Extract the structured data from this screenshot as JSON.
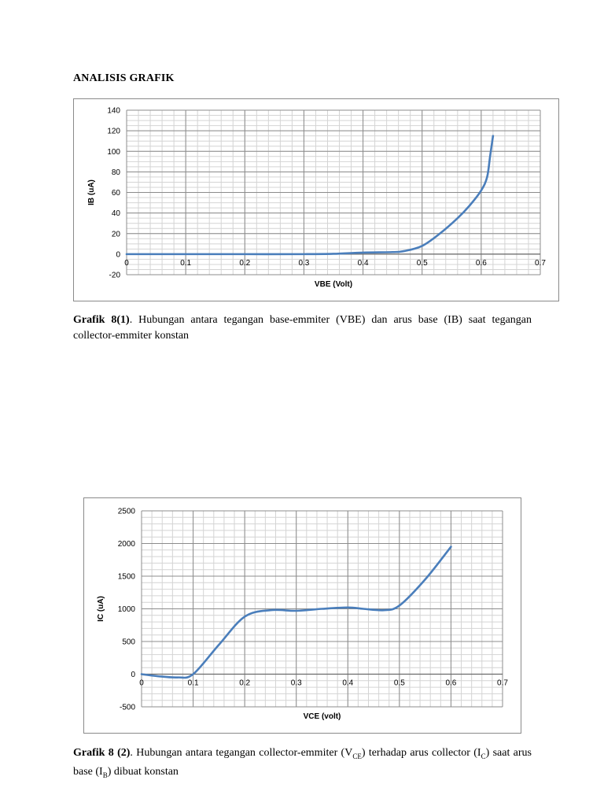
{
  "page": {
    "heading": "ANALISIS GRAFIK"
  },
  "captions": {
    "c1": {
      "bold": "Grafik 8(1)",
      "text": ". Hubungan antara tegangan base-emmiter (VBE) dan arus base (IB) saat tegangan collector-emmiter konstan"
    },
    "c2": {
      "bold": "Grafik 8 (2)",
      "p1": ". Hubungan antara tegangan collector-emmiter (V",
      "s1": "CE",
      "p2": ") terhadap arus collector (I",
      "s2": "C",
      "p3": ") saat arus base (I",
      "s3": "B",
      "p4": ") dibuat konstan"
    }
  },
  "chart_data": [
    {
      "type": "line",
      "title": "",
      "xlabel": "VBE (Volt)",
      "ylabel": "IB (uA)",
      "xlim": [
        0,
        0.7
      ],
      "ylim": [
        -20,
        140
      ],
      "x_ticks": [
        0,
        0.1,
        0.2,
        0.3,
        0.4,
        0.5,
        0.6,
        0.7
      ],
      "x_tick_labels": [
        "0",
        "0.1",
        "0.2",
        "0.3",
        "0.4",
        "0.5",
        "0.6",
        "0.7"
      ],
      "y_ticks": [
        -20,
        0,
        20,
        40,
        60,
        80,
        100,
        120,
        140
      ],
      "y_tick_labels": [
        "-20",
        "0",
        "20",
        "40",
        "60",
        "80",
        "100",
        "120",
        "140"
      ],
      "grid": true,
      "legend": "none",
      "line_color": "#4A7EBB",
      "series": [
        {
          "x": [
            0,
            0.1,
            0.2,
            0.3,
            0.35,
            0.4,
            0.45,
            0.47,
            0.5,
            0.53,
            0.56,
            0.58,
            0.6,
            0.61,
            0.615,
            0.62
          ],
          "y": [
            0,
            0,
            0,
            0,
            0.3,
            1.5,
            2,
            3,
            8,
            20,
            35,
            47,
            62,
            75,
            95,
            115
          ]
        }
      ]
    },
    {
      "type": "line",
      "title": "",
      "xlabel": "VCE (volt)",
      "ylabel": "IC (uA)",
      "xlim": [
        0,
        0.7
      ],
      "ylim": [
        -500,
        2500
      ],
      "x_ticks": [
        0,
        0.1,
        0.2,
        0.3,
        0.4,
        0.5,
        0.6,
        0.7
      ],
      "x_tick_labels": [
        "0",
        "0.1",
        "0.2",
        "0.3",
        "0.4",
        "0.5",
        "0.6",
        "0.7"
      ],
      "y_ticks": [
        -500,
        0,
        500,
        1000,
        1500,
        2000,
        2500
      ],
      "y_tick_labels": [
        "-500",
        "0",
        "500",
        "1000",
        "1500",
        "2000",
        "2500"
      ],
      "grid": true,
      "legend": "none",
      "line_color": "#4A7EBB",
      "series": [
        {
          "x": [
            0,
            0.03,
            0.07,
            0.1,
            0.15,
            0.2,
            0.25,
            0.3,
            0.35,
            0.4,
            0.43,
            0.47,
            0.5,
            0.55,
            0.6
          ],
          "y": [
            0,
            -30,
            -50,
            0,
            450,
            880,
            980,
            970,
            1000,
            1020,
            1000,
            980,
            1050,
            1450,
            1950
          ]
        }
      ]
    }
  ]
}
